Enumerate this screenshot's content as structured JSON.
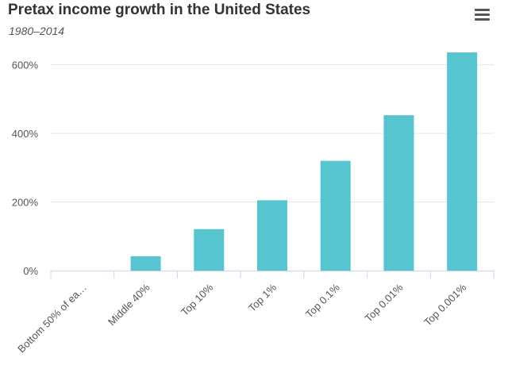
{
  "chart_data": {
    "type": "bar",
    "title": "Pretax income growth in the United States",
    "subtitle": "1980–2014",
    "categories": [
      "Bottom 50% of ea…",
      "Middle 40%",
      "Top 10%",
      "Top 1%",
      "Top 0.1%",
      "Top 0.01%",
      "Top 0.001%"
    ],
    "values": [
      0,
      42,
      121,
      205,
      320,
      453,
      636
    ],
    "yticks": [
      "0%",
      "200%",
      "400%",
      "600%"
    ],
    "ylim": [
      0,
      650
    ],
    "xlabel": "",
    "ylabel": "",
    "grid": true,
    "legend": "none",
    "colors": {
      "bar": "#56c5d0",
      "grid": "#e6e6e6",
      "axis": "#ccd6eb"
    }
  },
  "menu": {
    "icon": "hamburger-menu-icon"
  }
}
